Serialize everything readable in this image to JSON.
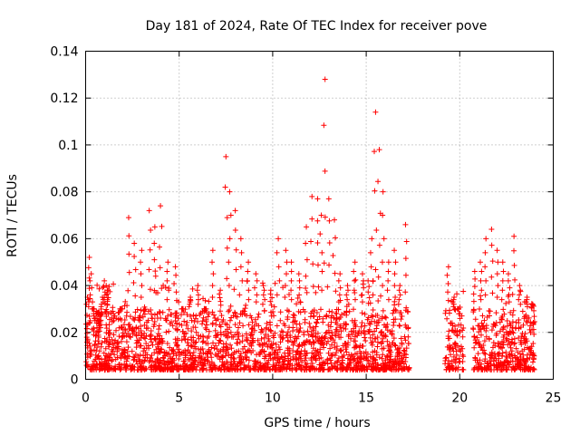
{
  "chart_data": {
    "type": "scatter",
    "title": "Day 181 of 2024, Rate Of TEC Index for receiver pove",
    "xlabel": "GPS time / hours",
    "ylabel": "ROTI / TECUs",
    "xlim": [
      0,
      25
    ],
    "ylim": [
      0,
      0.14
    ],
    "xticks": [
      "0",
      "5",
      "10",
      "15",
      "20",
      "25"
    ],
    "yticks": [
      "0",
      "0.02",
      "0.04",
      "0.06",
      "0.08",
      "0.1",
      "0.12",
      "0.14"
    ],
    "grid": true,
    "marker": "+",
    "color": "#ff0000",
    "data_gaps": [
      [
        17.3,
        19.2
      ],
      [
        20.2,
        20.7
      ],
      [
        24.0,
        25.0
      ]
    ],
    "series": [
      {
        "x": [
          0.1,
          0.2,
          0.3,
          0.4,
          0.5,
          0.6,
          0.7,
          0.8,
          0.9,
          1.0,
          1.1,
          1.2,
          1.5,
          1.9,
          2.3,
          2.6,
          3.0,
          3.4,
          3.7,
          4.0,
          4.4,
          4.8,
          5.2,
          5.6,
          6.0,
          6.4,
          6.8,
          7.2,
          7.5,
          7.7,
          8.0,
          8.3,
          8.7,
          9.1,
          9.5,
          9.9,
          10.3,
          10.7,
          11.0,
          11.4,
          11.8,
          12.1,
          12.4,
          12.6,
          12.8,
          13.0,
          13.3,
          13.6,
          14.0,
          14.4,
          14.8,
          15.1,
          15.3,
          15.5,
          15.7,
          15.9,
          16.2,
          16.5,
          16.8,
          17.1,
          19.4,
          19.7,
          19.9,
          20.8,
          21.1,
          21.4,
          21.7,
          22.0,
          22.3,
          22.6,
          22.9,
          23.2,
          23.6,
          23.9
        ],
        "y": [
          0.035,
          0.052,
          0.045,
          0.03,
          0.025,
          0.02,
          0.018,
          0.022,
          0.035,
          0.042,
          0.04,
          0.038,
          0.025,
          0.03,
          0.069,
          0.058,
          0.055,
          0.072,
          0.065,
          0.074,
          0.05,
          0.048,
          0.03,
          0.035,
          0.04,
          0.03,
          0.055,
          0.038,
          0.095,
          0.08,
          0.072,
          0.06,
          0.05,
          0.045,
          0.04,
          0.038,
          0.06,
          0.055,
          0.05,
          0.045,
          0.065,
          0.078,
          0.077,
          0.07,
          0.128,
          0.077,
          0.068,
          0.045,
          0.04,
          0.05,
          0.045,
          0.042,
          0.06,
          0.114,
          0.098,
          0.08,
          0.05,
          0.055,
          0.04,
          0.066,
          0.048,
          0.035,
          0.03,
          0.046,
          0.05,
          0.06,
          0.064,
          0.055,
          0.05,
          0.045,
          0.061,
          0.04,
          0.035,
          0.032
        ]
      }
    ]
  }
}
